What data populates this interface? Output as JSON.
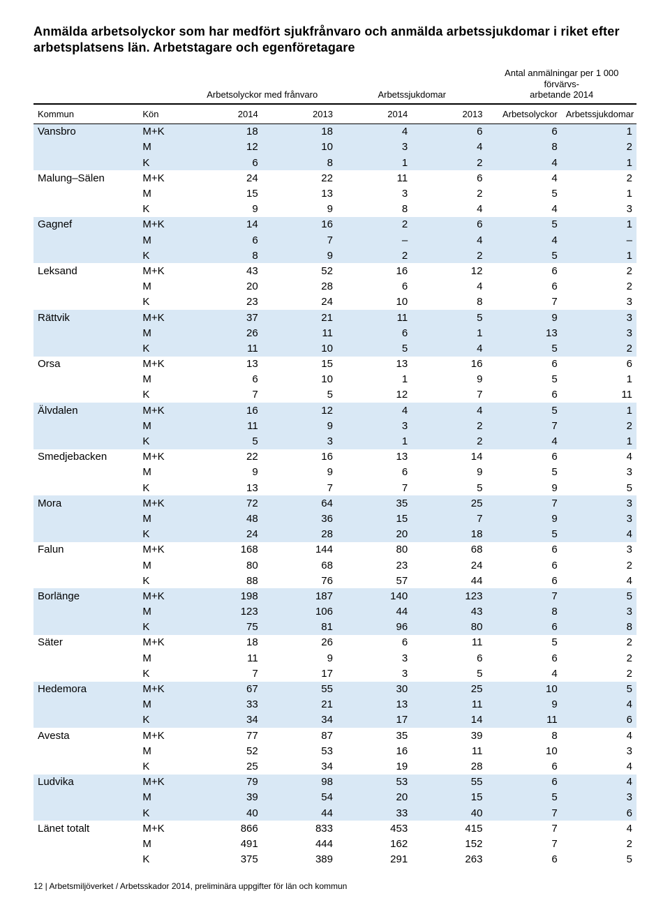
{
  "title": "Anmälda arbetsolyckor som har medfört sjukfrånvaro och anmälda arbetssjukdomar i riket efter arbetsplatsens län. Arbetstagare och egenföretagare",
  "superheaders": {
    "col_group_1": "Arbetsolyckor med frånvaro",
    "col_group_2": "Arbetssjukdomar",
    "col_group_3_line1": "Antal anmälningar per 1 000 förvärvs-",
    "col_group_3_line2": "arbetande 2014"
  },
  "headers": {
    "kommun": "Kommun",
    "kon": "Kön",
    "y2014a": "2014",
    "y2013a": "2013",
    "y2014b": "2014",
    "y2013b": "2013",
    "arbetsolyckor": "Arbetsolyckor",
    "arbetssjukdomar": "Arbetssjukdomar"
  },
  "colors": {
    "shade": "#d9e8f5",
    "rule": "#000000",
    "bg": "#ffffff"
  },
  "groups": [
    {
      "kommun": "Vansbro",
      "shade": true,
      "rows": [
        {
          "kon": "M+K",
          "v": [
            "18",
            "18",
            "4",
            "6",
            "6",
            "1"
          ]
        },
        {
          "kon": "M",
          "v": [
            "12",
            "10",
            "3",
            "4",
            "8",
            "2"
          ]
        },
        {
          "kon": "K",
          "v": [
            "6",
            "8",
            "1",
            "2",
            "4",
            "1"
          ]
        }
      ]
    },
    {
      "kommun": "Malung–Sälen",
      "shade": false,
      "rows": [
        {
          "kon": "M+K",
          "v": [
            "24",
            "22",
            "11",
            "6",
            "4",
            "2"
          ]
        },
        {
          "kon": "M",
          "v": [
            "15",
            "13",
            "3",
            "2",
            "5",
            "1"
          ]
        },
        {
          "kon": "K",
          "v": [
            "9",
            "9",
            "8",
            "4",
            "4",
            "3"
          ]
        }
      ]
    },
    {
      "kommun": "Gagnef",
      "shade": true,
      "rows": [
        {
          "kon": "M+K",
          "v": [
            "14",
            "16",
            "2",
            "6",
            "5",
            "1"
          ]
        },
        {
          "kon": "M",
          "v": [
            "6",
            "7",
            "–",
            "4",
            "4",
            "–"
          ]
        },
        {
          "kon": "K",
          "v": [
            "8",
            "9",
            "2",
            "2",
            "5",
            "1"
          ]
        }
      ]
    },
    {
      "kommun": "Leksand",
      "shade": false,
      "rows": [
        {
          "kon": "M+K",
          "v": [
            "43",
            "52",
            "16",
            "12",
            "6",
            "2"
          ]
        },
        {
          "kon": "M",
          "v": [
            "20",
            "28",
            "6",
            "4",
            "6",
            "2"
          ]
        },
        {
          "kon": "K",
          "v": [
            "23",
            "24",
            "10",
            "8",
            "7",
            "3"
          ]
        }
      ]
    },
    {
      "kommun": "Rättvik",
      "shade": true,
      "rows": [
        {
          "kon": "M+K",
          "v": [
            "37",
            "21",
            "11",
            "5",
            "9",
            "3"
          ]
        },
        {
          "kon": "M",
          "v": [
            "26",
            "11",
            "6",
            "1",
            "13",
            "3"
          ]
        },
        {
          "kon": "K",
          "v": [
            "11",
            "10",
            "5",
            "4",
            "5",
            "2"
          ]
        }
      ]
    },
    {
      "kommun": "Orsa",
      "shade": false,
      "rows": [
        {
          "kon": "M+K",
          "v": [
            "13",
            "15",
            "13",
            "16",
            "6",
            "6"
          ]
        },
        {
          "kon": "M",
          "v": [
            "6",
            "10",
            "1",
            "9",
            "5",
            "1"
          ]
        },
        {
          "kon": "K",
          "v": [
            "7",
            "5",
            "12",
            "7",
            "6",
            "11"
          ]
        }
      ]
    },
    {
      "kommun": "Älvdalen",
      "shade": true,
      "rows": [
        {
          "kon": "M+K",
          "v": [
            "16",
            "12",
            "4",
            "4",
            "5",
            "1"
          ]
        },
        {
          "kon": "M",
          "v": [
            "11",
            "9",
            "3",
            "2",
            "7",
            "2"
          ]
        },
        {
          "kon": "K",
          "v": [
            "5",
            "3",
            "1",
            "2",
            "4",
            "1"
          ]
        }
      ]
    },
    {
      "kommun": "Smedjebacken",
      "shade": false,
      "rows": [
        {
          "kon": "M+K",
          "v": [
            "22",
            "16",
            "13",
            "14",
            "6",
            "4"
          ]
        },
        {
          "kon": "M",
          "v": [
            "9",
            "9",
            "6",
            "9",
            "5",
            "3"
          ]
        },
        {
          "kon": "K",
          "v": [
            "13",
            "7",
            "7",
            "5",
            "9",
            "5"
          ]
        }
      ]
    },
    {
      "kommun": "Mora",
      "shade": true,
      "rows": [
        {
          "kon": "M+K",
          "v": [
            "72",
            "64",
            "35",
            "25",
            "7",
            "3"
          ]
        },
        {
          "kon": "M",
          "v": [
            "48",
            "36",
            "15",
            "7",
            "9",
            "3"
          ]
        },
        {
          "kon": "K",
          "v": [
            "24",
            "28",
            "20",
            "18",
            "5",
            "4"
          ]
        }
      ]
    },
    {
      "kommun": "Falun",
      "shade": false,
      "rows": [
        {
          "kon": "M+K",
          "v": [
            "168",
            "144",
            "80",
            "68",
            "6",
            "3"
          ]
        },
        {
          "kon": "M",
          "v": [
            "80",
            "68",
            "23",
            "24",
            "6",
            "2"
          ]
        },
        {
          "kon": "K",
          "v": [
            "88",
            "76",
            "57",
            "44",
            "6",
            "4"
          ]
        }
      ]
    },
    {
      "kommun": "Borlänge",
      "shade": true,
      "rows": [
        {
          "kon": "M+K",
          "v": [
            "198",
            "187",
            "140",
            "123",
            "7",
            "5"
          ]
        },
        {
          "kon": "M",
          "v": [
            "123",
            "106",
            "44",
            "43",
            "8",
            "3"
          ]
        },
        {
          "kon": "K",
          "v": [
            "75",
            "81",
            "96",
            "80",
            "6",
            "8"
          ]
        }
      ]
    },
    {
      "kommun": "Säter",
      "shade": false,
      "rows": [
        {
          "kon": "M+K",
          "v": [
            "18",
            "26",
            "6",
            "11",
            "5",
            "2"
          ]
        },
        {
          "kon": "M",
          "v": [
            "11",
            "9",
            "3",
            "6",
            "6",
            "2"
          ]
        },
        {
          "kon": "K",
          "v": [
            "7",
            "17",
            "3",
            "5",
            "4",
            "2"
          ]
        }
      ]
    },
    {
      "kommun": "Hedemora",
      "shade": true,
      "rows": [
        {
          "kon": "M+K",
          "v": [
            "67",
            "55",
            "30",
            "25",
            "10",
            "5"
          ]
        },
        {
          "kon": "M",
          "v": [
            "33",
            "21",
            "13",
            "11",
            "9",
            "4"
          ]
        },
        {
          "kon": "K",
          "v": [
            "34",
            "34",
            "17",
            "14",
            "11",
            "6"
          ]
        }
      ]
    },
    {
      "kommun": "Avesta",
      "shade": false,
      "rows": [
        {
          "kon": "M+K",
          "v": [
            "77",
            "87",
            "35",
            "39",
            "8",
            "4"
          ]
        },
        {
          "kon": "M",
          "v": [
            "52",
            "53",
            "16",
            "11",
            "10",
            "3"
          ]
        },
        {
          "kon": "K",
          "v": [
            "25",
            "34",
            "19",
            "28",
            "6",
            "4"
          ]
        }
      ]
    },
    {
      "kommun": "Ludvika",
      "shade": true,
      "rows": [
        {
          "kon": "M+K",
          "v": [
            "79",
            "98",
            "53",
            "55",
            "6",
            "4"
          ]
        },
        {
          "kon": "M",
          "v": [
            "39",
            "54",
            "20",
            "15",
            "5",
            "3"
          ]
        },
        {
          "kon": "K",
          "v": [
            "40",
            "44",
            "33",
            "40",
            "7",
            "6"
          ]
        }
      ]
    },
    {
      "kommun": "Länet totalt",
      "shade": false,
      "rows": [
        {
          "kon": "M+K",
          "v": [
            "866",
            "833",
            "453",
            "415",
            "7",
            "4"
          ]
        },
        {
          "kon": "M",
          "v": [
            "491",
            "444",
            "162",
            "152",
            "7",
            "2"
          ]
        },
        {
          "kon": "K",
          "v": [
            "375",
            "389",
            "291",
            "263",
            "6",
            "5"
          ]
        }
      ]
    }
  ],
  "footer": "12 | Arbetsmiljöverket / Arbetsskador 2014, preliminära uppgifter för län och kommun"
}
